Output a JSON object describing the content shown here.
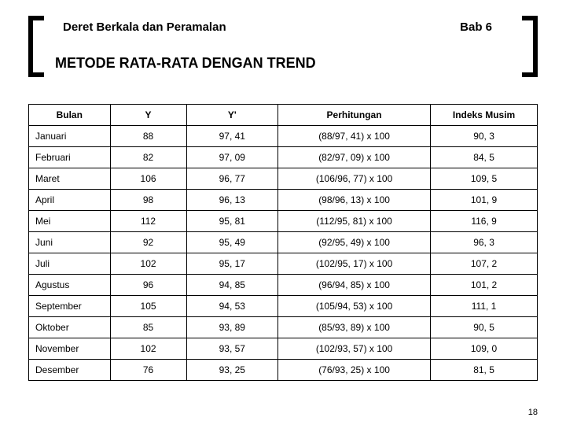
{
  "header": {
    "chapter_title": "Deret Berkala dan Peramalan",
    "chapter_label": "Bab 6",
    "section_title": "METODE RATA-RATA DENGAN TREND"
  },
  "table": {
    "columns": [
      "Bulan",
      "Y",
      "Y'",
      "Perhitungan",
      "Indeks Musim"
    ],
    "rows": [
      [
        "Januari",
        "88",
        "97, 41",
        "(88/97, 41) x 100",
        "90, 3"
      ],
      [
        "Februari",
        "82",
        "97, 09",
        "(82/97, 09) x 100",
        "84, 5"
      ],
      [
        "Maret",
        "106",
        "96, 77",
        "(106/96, 77) x 100",
        "109, 5"
      ],
      [
        "April",
        "98",
        "96, 13",
        "(98/96, 13) x 100",
        "101, 9"
      ],
      [
        "Mei",
        "112",
        "95, 81",
        "(112/95, 81) x 100",
        "116, 9"
      ],
      [
        "Juni",
        "92",
        "95, 49",
        "(92/95, 49) x 100",
        "96, 3"
      ],
      [
        "Juli",
        "102",
        "95, 17",
        "(102/95, 17) x 100",
        "107, 2"
      ],
      [
        "Agustus",
        "96",
        "94, 85",
        "(96/94, 85) x 100",
        "101, 2"
      ],
      [
        "September",
        "105",
        "94, 53",
        "(105/94, 53) x 100",
        "111, 1"
      ],
      [
        "Oktober",
        "85",
        "93, 89",
        "(85/93, 89) x 100",
        "90, 5"
      ],
      [
        "November",
        "102",
        "93, 57",
        "(102/93, 57) x 100",
        "109, 0"
      ],
      [
        "Desember",
        "76",
        "93, 25",
        "(76/93, 25) x 100",
        "81, 5"
      ]
    ]
  },
  "page_number": "18",
  "style": {
    "background_color": "#ffffff",
    "border_color": "#000000",
    "bracket_color": "#000000",
    "header_fontsize": 15,
    "section_fontsize": 18,
    "cell_fontsize": 12
  }
}
